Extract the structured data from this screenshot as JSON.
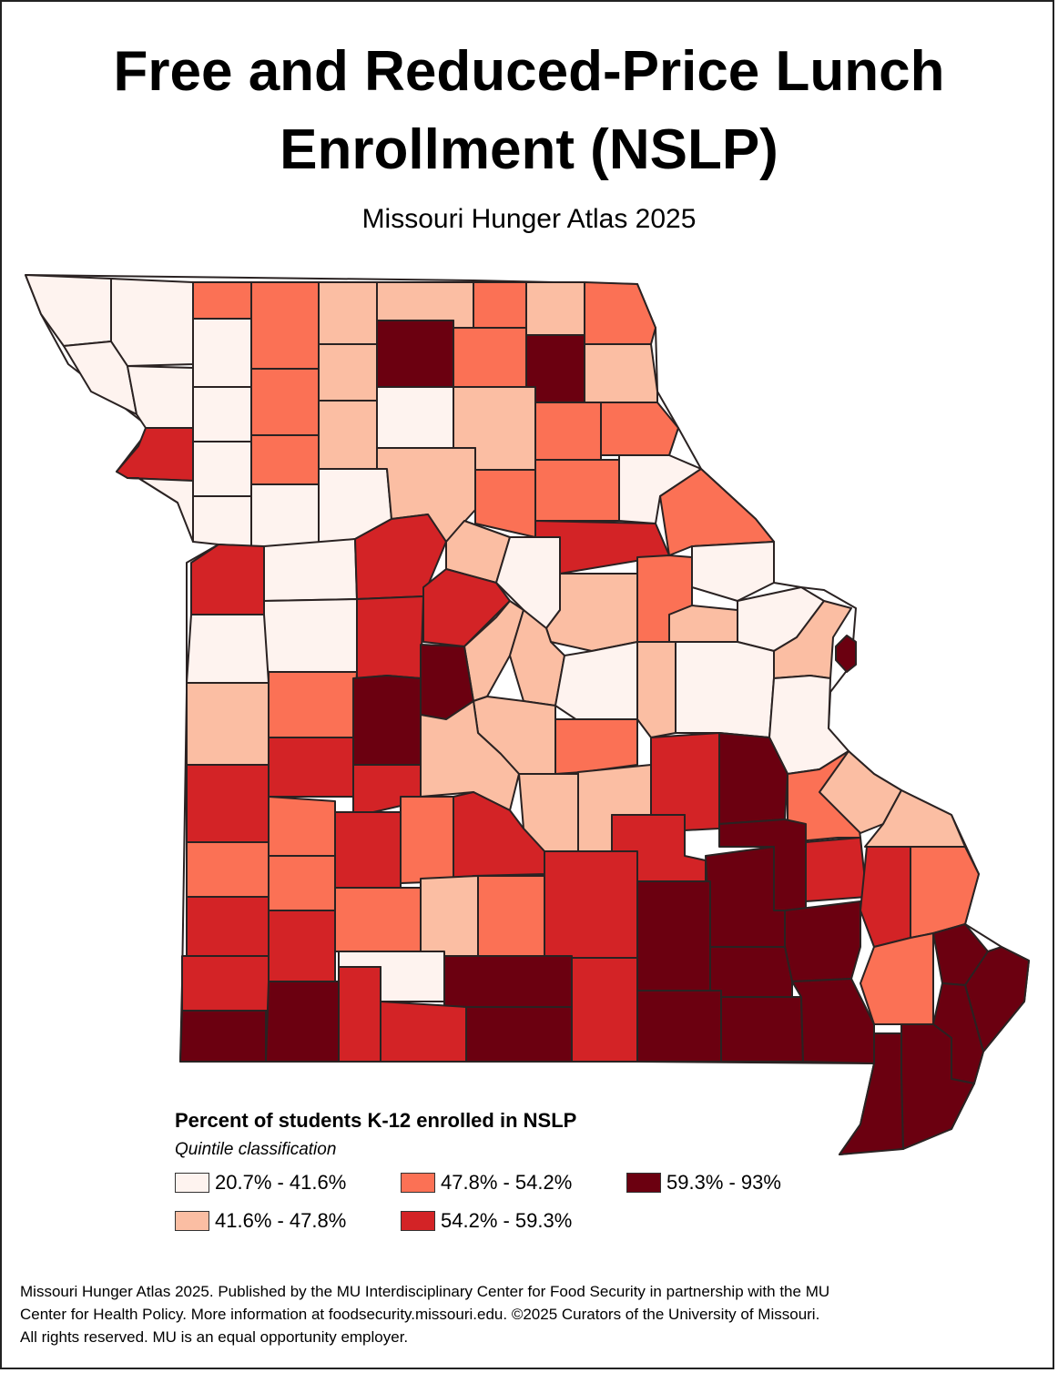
{
  "header": {
    "title_line1": "Free and Reduced-Price Lunch",
    "title_line2": "Enrollment (NSLP)",
    "subtitle": "Missouri Hunger Atlas 2025"
  },
  "legend": {
    "title": "Percent of students K-12 enrolled in NSLP",
    "subtitle": "Quintile classification",
    "classes": [
      {
        "label": "20.7% - 41.6%",
        "color": "#fef3ef"
      },
      {
        "label": "41.6% - 47.8%",
        "color": "#fbbea3"
      },
      {
        "label": "47.8% - 54.2%",
        "color": "#fb7155"
      },
      {
        "label": "54.2% - 59.3%",
        "color": "#d32326"
      },
      {
        "label": "59.3% - 93%",
        "color": "#6b0010"
      }
    ]
  },
  "footer": {
    "line1": "Missouri Hunger Atlas 2025. Published by the MU Interdisciplinary Center for Food Security in partnership with the MU",
    "line2": "Center for Health Policy. More information at foodsecurity.missouri.edu. ©2025 Curators of the University of Missouri.",
    "line3": "All rights reserved. MU is an equal opportunity employer."
  }
}
